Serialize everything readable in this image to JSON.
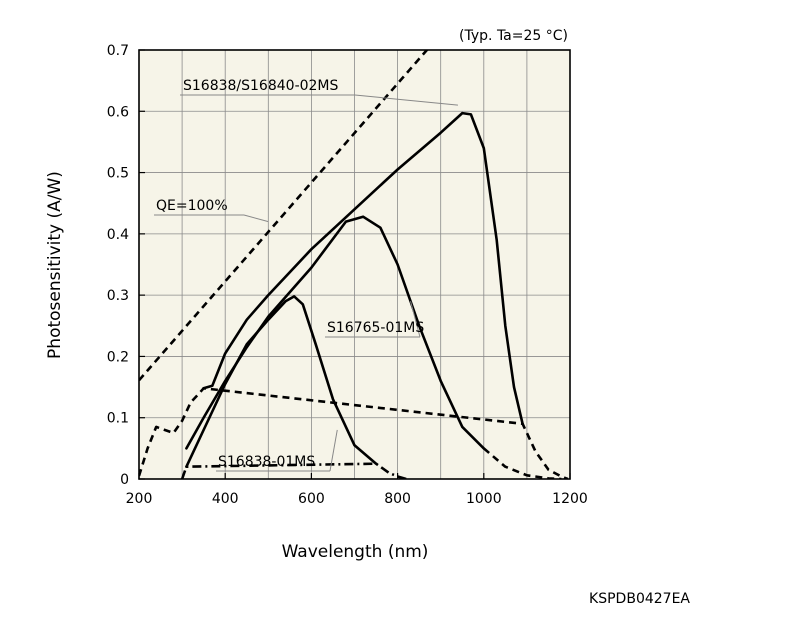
{
  "chart_data": {
    "type": "line",
    "note": "(Typ. Ta=25 °C)",
    "xlabel": "Wavelength (nm)",
    "ylabel": "Photosensitivity (A/W)",
    "xlim": [
      200,
      1200
    ],
    "ylim": [
      0,
      0.7
    ],
    "xticks": [
      200,
      400,
      600,
      800,
      1000,
      1200
    ],
    "yticks": [
      0,
      0.1,
      0.2,
      0.3,
      0.4,
      0.5,
      0.6,
      0.7
    ],
    "x_minor_step": 100,
    "y_minor_step": 0.1,
    "grid": true,
    "plot_background": "#f6f4e8",
    "line_color": "#000000",
    "series": [
      {
        "name": "QE=100%",
        "style": "dashed",
        "x": [
          200,
          1200
        ],
        "y": [
          0.161,
          0.968
        ]
      },
      {
        "name": "S16838/S16840-02MS",
        "style": "solid",
        "x": [
          350,
          370,
          400,
          450,
          500,
          600,
          700,
          800,
          900,
          950,
          970,
          1000,
          1030,
          1050,
          1070,
          1090
        ],
        "y": [
          0.148,
          0.152,
          0.205,
          0.26,
          0.3,
          0.375,
          0.44,
          0.505,
          0.565,
          0.597,
          0.595,
          0.54,
          0.39,
          0.25,
          0.15,
          0.09
        ]
      },
      {
        "name": "S16838/S16840-02MS (extension)",
        "style": "dashed",
        "x": [
          200,
          220,
          240,
          260,
          280,
          300,
          320,
          340,
          350,
          1090,
          1120,
          1150,
          1180,
          1195
        ],
        "y": [
          0.005,
          0.05,
          0.085,
          0.08,
          0.075,
          0.095,
          0.125,
          0.14,
          0.148,
          0.09,
          0.045,
          0.015,
          0.004,
          0.0
        ]
      },
      {
        "name": "S16765-01MS",
        "style": "solid",
        "x": [
          310,
          350,
          400,
          450,
          500,
          600,
          680,
          720,
          760,
          800,
          850,
          900,
          950,
          1000
        ],
        "y": [
          0.05,
          0.1,
          0.16,
          0.215,
          0.265,
          0.345,
          0.42,
          0.428,
          0.41,
          0.35,
          0.25,
          0.16,
          0.085,
          0.05
        ]
      },
      {
        "name": "S16765-01MS (extension)",
        "style": "dashed",
        "x": [
          1000,
          1050,
          1100,
          1150,
          1180
        ],
        "y": [
          0.05,
          0.02,
          0.006,
          0.001,
          0.0
        ]
      },
      {
        "name": "S16838-01MS",
        "style": "solid",
        "x": [
          310,
          350,
          400,
          450,
          500,
          540,
          560,
          580,
          610,
          650,
          700,
          750
        ],
        "y": [
          0.02,
          0.08,
          0.155,
          0.22,
          0.26,
          0.29,
          0.298,
          0.285,
          0.22,
          0.13,
          0.055,
          0.025
        ]
      },
      {
        "name": "S16838-01MS (extension)",
        "style": "dashdot",
        "x": [
          300,
          310,
          750,
          780,
          800,
          820
        ],
        "y": [
          0.0,
          0.02,
          0.025,
          0.01,
          0.004,
          0.0
        ]
      }
    ],
    "annotations": [
      {
        "text": "S16838/S16840-02MS",
        "pointer_x": 940,
        "pointer_y": 0.61
      },
      {
        "text": "QE=100%",
        "pointer_x": 500,
        "pointer_y": 0.42
      },
      {
        "text": "S16765-01MS",
        "pointer_x": 830,
        "pointer_y": 0.29
      },
      {
        "text": "S16838-01MS",
        "pointer_x": 660,
        "pointer_y": 0.08
      }
    ],
    "footer_code": "KSPDB0427EA"
  }
}
